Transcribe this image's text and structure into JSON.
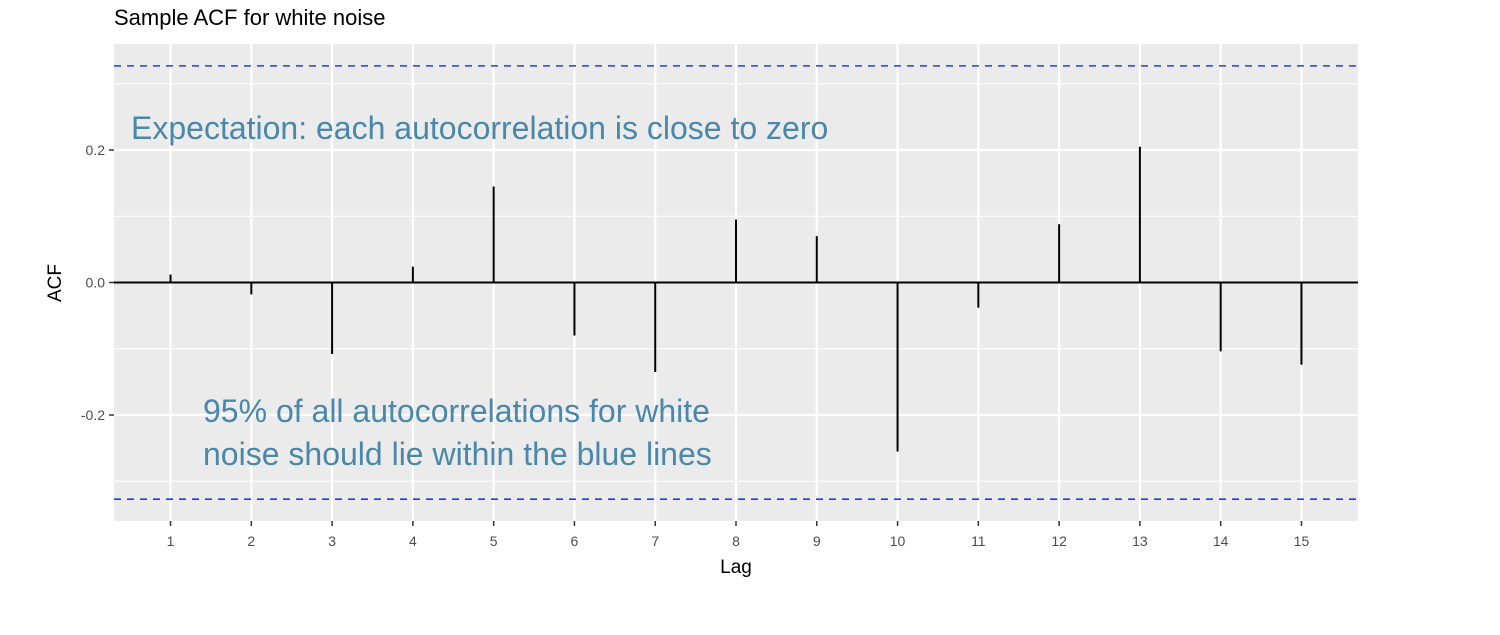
{
  "chart_data": {
    "type": "bar",
    "title": "Sample ACF for white noise",
    "xlabel": "Lag",
    "ylabel": "ACF",
    "x": [
      1,
      2,
      3,
      4,
      5,
      6,
      7,
      8,
      9,
      10,
      11,
      12,
      13,
      14,
      15
    ],
    "values": [
      0.012,
      -0.018,
      -0.108,
      0.024,
      0.145,
      -0.08,
      -0.135,
      0.095,
      0.07,
      -0.255,
      -0.038,
      0.088,
      0.205,
      -0.104,
      -0.124
    ],
    "x_ticks": [
      "1",
      "2",
      "3",
      "4",
      "5",
      "6",
      "7",
      "8",
      "9",
      "10",
      "11",
      "12",
      "13",
      "14",
      "15"
    ],
    "y_ticks": [
      {
        "value": -0.2,
        "label": "-0.2"
      },
      {
        "value": 0.0,
        "label": "0.0"
      },
      {
        "value": 0.2,
        "label": "0.2"
      }
    ],
    "xlim": [
      0.3,
      15.7
    ],
    "ylim": [
      -0.36,
      0.36
    ],
    "confidence_bound": 0.327,
    "grid": true,
    "colors": {
      "panel": "#ebebeb",
      "grid": "#ffffff",
      "bars": "#000000",
      "bounds": "#1f3cf5",
      "annotation": "#4a87a8"
    },
    "annotations": {
      "top": "Expectation: each autocorrelation is close to zero",
      "bottom_line1": "95% of all autocorrelations for white",
      "bottom_line2": "noise should lie within the blue lines"
    }
  }
}
